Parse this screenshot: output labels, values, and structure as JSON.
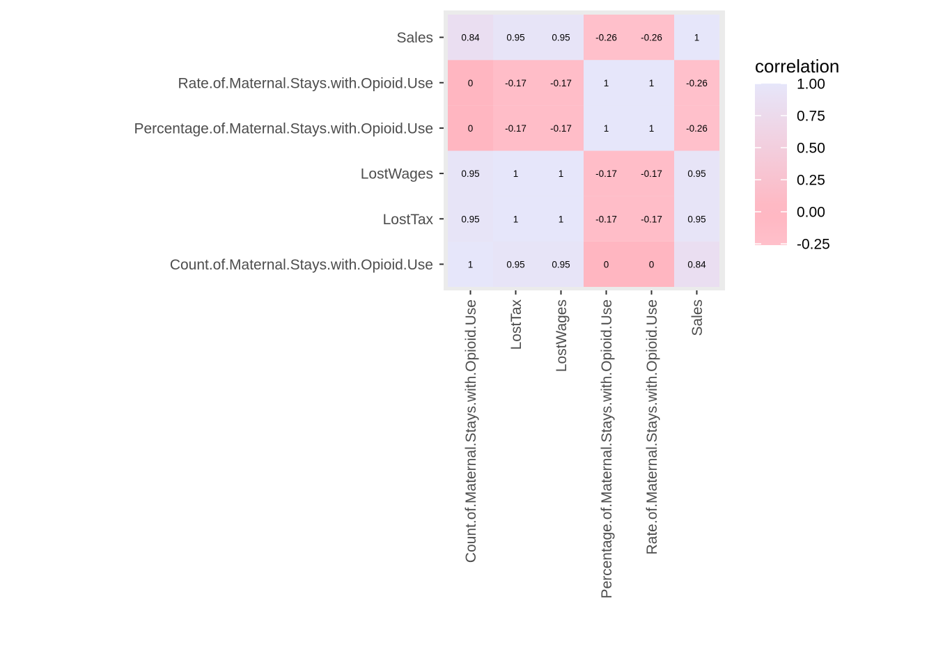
{
  "chart_data": {
    "type": "heatmap",
    "x_categories": [
      "Count.of.Maternal.Stays.with.Opioid.Use",
      "LostTax",
      "LostWages",
      "Percentage.of.Maternal.Stays.with.Opioid.Use",
      "Rate.of.Maternal.Stays.with.Opioid.Use",
      "Sales"
    ],
    "y_categories": [
      "Count.of.Maternal.Stays.with.Opioid.Use",
      "LostTax",
      "LostWages",
      "Percentage.of.Maternal.Stays.with.Opioid.Use",
      "Rate.of.Maternal.Stays.with.Opioid.Use",
      "Sales"
    ],
    "values": [
      [
        1,
        0.95,
        0.95,
        0,
        0,
        0.84
      ],
      [
        0.95,
        1,
        1,
        -0.17,
        -0.17,
        0.95
      ],
      [
        0.95,
        1,
        1,
        -0.17,
        -0.17,
        0.95
      ],
      [
        0,
        -0.17,
        -0.17,
        1,
        1,
        -0.26
      ],
      [
        0,
        -0.17,
        -0.17,
        1,
        1,
        -0.26
      ],
      [
        0.84,
        0.95,
        0.95,
        -0.26,
        -0.26,
        1
      ]
    ],
    "cell_labels": [
      [
        "1",
        "0.95",
        "0.95",
        "0",
        "0",
        "0.84"
      ],
      [
        "0.95",
        "1",
        "1",
        "-0.17",
        "-0.17",
        "0.95"
      ],
      [
        "0.95",
        "1",
        "1",
        "-0.17",
        "-0.17",
        "0.95"
      ],
      [
        "0",
        "-0.17",
        "-0.17",
        "1",
        "1",
        "-0.26"
      ],
      [
        "0",
        "-0.17",
        "-0.17",
        "1",
        "1",
        "-0.26"
      ],
      [
        "0.84",
        "0.95",
        "0.95",
        "-0.26",
        "-0.26",
        "1"
      ]
    ],
    "legend": {
      "title": "correlation",
      "ticks": [
        {
          "value": 1.0,
          "label": "1.00"
        },
        {
          "value": 0.75,
          "label": "0.75"
        },
        {
          "value": 0.5,
          "label": "0.50"
        },
        {
          "value": 0.25,
          "label": "0.25"
        },
        {
          "value": 0.0,
          "label": "0.00"
        },
        {
          "value": -0.25,
          "label": "-0.25"
        }
      ],
      "range": [
        -0.26,
        1.0
      ],
      "placement": "right"
    },
    "colors": {
      "low": "#ffc0cb",
      "mid": "#ffb6c1",
      "high": "#e6e6fa",
      "panel_background": "#ebebeb",
      "axis_text": "#4d4d4d"
    },
    "grid": false,
    "title": "",
    "xlabel": "",
    "ylabel": ""
  }
}
